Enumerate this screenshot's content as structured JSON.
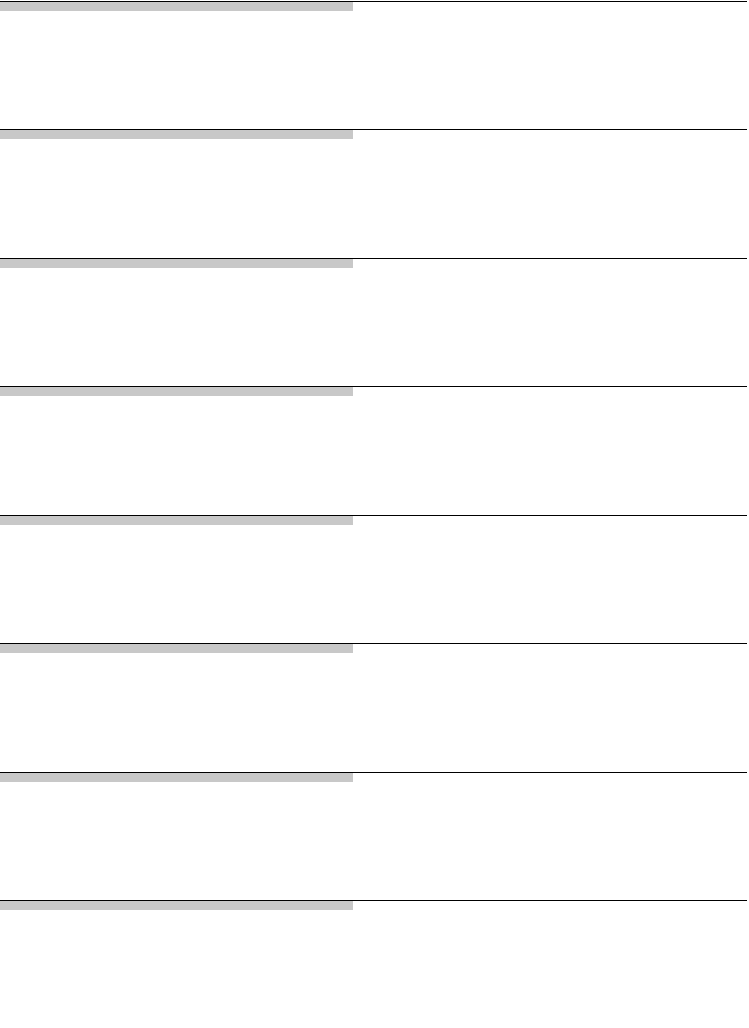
{
  "colors": {
    "rule": "#000000",
    "bar": "#c8c8c8"
  },
  "sections": [
    {},
    {},
    {},
    {},
    {},
    {},
    {},
    {}
  ]
}
